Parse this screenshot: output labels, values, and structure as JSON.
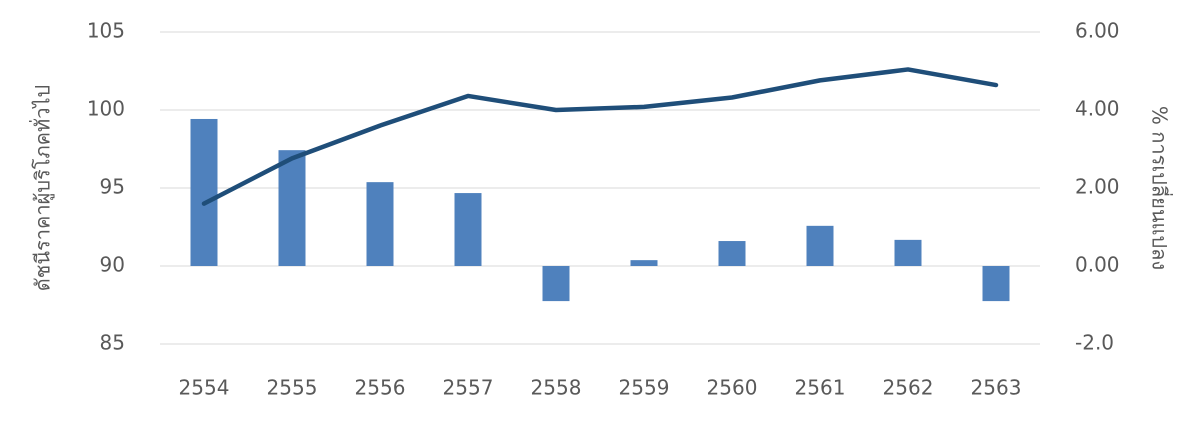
{
  "chart_data": {
    "type": "combo",
    "categories": [
      "2554",
      "2555",
      "2556",
      "2557",
      "2558",
      "2559",
      "2560",
      "2561",
      "2562",
      "2563"
    ],
    "ylabel": "ดัชนีราคาผู้บริโภคทั่วไป",
    "y2label": "% การเปลี่ยนแปลง",
    "ylim": [
      85,
      105
    ],
    "yticks": [
      85,
      90,
      95,
      100,
      105
    ],
    "y2lim": [
      -2,
      6
    ],
    "y2ticks": [
      {
        "value": -2,
        "label": "-2.0"
      },
      {
        "value": 0,
        "label": "0.00"
      },
      {
        "value": 2,
        "label": "2.00"
      },
      {
        "value": 4,
        "label": "4.00"
      },
      {
        "value": 6,
        "label": "6.00"
      }
    ],
    "grid": true,
    "series": [
      {
        "type": "bar",
        "axis": "y2",
        "color": "#4f81bd",
        "values": [
          3.77,
          2.97,
          2.15,
          1.87,
          -0.9,
          0.15,
          0.64,
          1.03,
          0.67,
          -0.9
        ]
      },
      {
        "type": "line",
        "axis": "y",
        "color": "#1f4e79",
        "values": [
          94.0,
          96.9,
          99.0,
          100.9,
          100.0,
          100.2,
          100.8,
          101.9,
          102.6,
          101.6
        ]
      }
    ]
  }
}
